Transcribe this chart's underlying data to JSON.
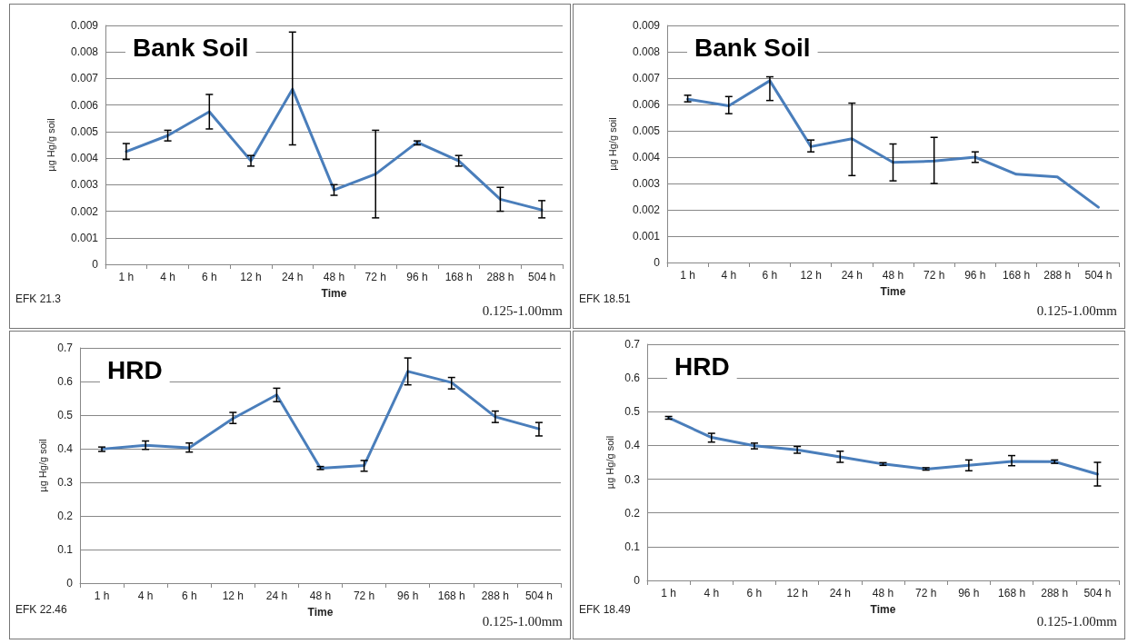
{
  "chart_data": [
    {
      "type": "line",
      "title": "Bank Soil",
      "xlabel": "Time",
      "ylabel": "µg Hg/g soil",
      "annotations": [
        "EFK 21.3",
        "0.125-1.00mm"
      ],
      "categories": [
        "1 h",
        "4 h",
        "6 h",
        "12 h",
        "24 h",
        "48 h",
        "72 h",
        "96 h",
        "168 h",
        "288 h",
        "504 h"
      ],
      "series": [
        {
          "color": "#4a7ebb",
          "values": [
            0.00425,
            0.00485,
            0.00575,
            0.0039,
            0.0066,
            0.0028,
            0.0034,
            0.0046,
            0.0039,
            0.00245,
            0.00205
          ],
          "errors": [
            [
              0.00395,
              0.00455
            ],
            [
              0.00465,
              0.00505
            ],
            [
              0.0051,
              0.0064
            ],
            [
              0.0037,
              0.0041
            ],
            [
              0.0045,
              0.00875
            ],
            [
              0.0026,
              0.003
            ],
            [
              0.00175,
              0.00505
            ],
            [
              0.0045,
              0.00465
            ],
            [
              0.0037,
              0.0041
            ],
            [
              0.002,
              0.0029
            ],
            [
              0.00175,
              0.0024
            ]
          ]
        }
      ],
      "ylim": [
        0,
        0.009
      ],
      "yticks": [
        0,
        0.001,
        0.002,
        0.003,
        0.004,
        0.005,
        0.006,
        0.007,
        0.008,
        0.009
      ],
      "grid": "y",
      "marker": "none",
      "line_style": "solid"
    },
    {
      "type": "line",
      "title": "Bank Soil",
      "xlabel": "Time",
      "ylabel": "µg Hg/g soil",
      "annotations": [
        "EFK 18.51",
        "0.125-1.00mm"
      ],
      "categories": [
        "1 h",
        "4 h",
        "6 h",
        "12 h",
        "24 h",
        "48 h",
        "72 h",
        "96 h",
        "168 h",
        "288 h",
        "504 h"
      ],
      "series": [
        {
          "color": "#4a7ebb",
          "values": [
            0.0062,
            0.00595,
            0.0069,
            0.0044,
            0.0047,
            0.0038,
            0.00385,
            0.004,
            0.00335,
            0.00325,
            0.0021
          ],
          "errors": [
            [
              0.0061,
              0.00635
            ],
            [
              0.00565,
              0.0063
            ],
            [
              0.00615,
              0.00705
            ],
            [
              0.0042,
              0.00465
            ],
            [
              0.0033,
              0.00605
            ],
            [
              0.0031,
              0.0045
            ],
            [
              0.003,
              0.00475
            ],
            [
              0.0038,
              0.0042
            ],
            null,
            null,
            null
          ]
        }
      ],
      "ylim": [
        0,
        0.009
      ],
      "yticks": [
        0,
        0.001,
        0.002,
        0.003,
        0.004,
        0.005,
        0.006,
        0.007,
        0.008,
        0.009
      ],
      "grid": "y",
      "marker": "none",
      "line_style": "solid"
    },
    {
      "type": "line",
      "title": "HRD",
      "xlabel": "Time",
      "ylabel": "µg Hg/g soil",
      "annotations": [
        "EFK 22.46",
        "0.125-1.00mm"
      ],
      "categories": [
        "1 h",
        "4 h",
        "6 h",
        "12 h",
        "24 h",
        "48 h",
        "72 h",
        "96 h",
        "168 h",
        "288 h",
        "504 h"
      ],
      "series": [
        {
          "color": "#4a7ebb",
          "values": [
            0.399,
            0.41,
            0.403,
            0.49,
            0.56,
            0.342,
            0.35,
            0.63,
            0.597,
            0.495,
            0.459
          ],
          "errors": [
            [
              0.392,
              0.405
            ],
            [
              0.398,
              0.423
            ],
            [
              0.39,
              0.417
            ],
            [
              0.475,
              0.508
            ],
            [
              0.54,
              0.58
            ],
            [
              0.338,
              0.347
            ],
            [
              0.333,
              0.365
            ],
            [
              0.59,
              0.67
            ],
            [
              0.578,
              0.612
            ],
            [
              0.478,
              0.512
            ],
            [
              0.438,
              0.478
            ]
          ]
        }
      ],
      "ylim": [
        0,
        0.7
      ],
      "yticks": [
        0,
        0.1,
        0.2,
        0.3,
        0.4,
        0.5,
        0.6,
        0.7
      ],
      "grid": "y",
      "marker": "none",
      "line_style": "solid"
    },
    {
      "type": "line",
      "title": "HRD",
      "xlabel": "Time",
      "ylabel": "µg Hg/g soil",
      "annotations": [
        "EFK 18.49",
        "0.125-1.00mm"
      ],
      "categories": [
        "1 h",
        "4 h",
        "6 h",
        "12 h",
        "24 h",
        "48 h",
        "72 h",
        "96 h",
        "168 h",
        "288 h",
        "504 h"
      ],
      "series": [
        {
          "color": "#4a7ebb",
          "values": [
            0.482,
            0.424,
            0.399,
            0.387,
            0.366,
            0.345,
            0.33,
            0.341,
            0.353,
            0.352,
            0.315
          ],
          "errors": [
            [
              0.478,
              0.486
            ],
            [
              0.41,
              0.436
            ],
            [
              0.39,
              0.407
            ],
            [
              0.377,
              0.397
            ],
            [
              0.35,
              0.383
            ],
            [
              0.341,
              0.349
            ],
            [
              0.327,
              0.334
            ],
            [
              0.325,
              0.357
            ],
            [
              0.34,
              0.37
            ],
            [
              0.347,
              0.357
            ],
            [
              0.28,
              0.35
            ]
          ]
        }
      ],
      "ylim": [
        0,
        0.7
      ],
      "yticks": [
        0,
        0.1,
        0.2,
        0.3,
        0.4,
        0.5,
        0.6,
        0.7
      ],
      "grid": "y",
      "marker": "none",
      "line_style": "solid"
    }
  ]
}
